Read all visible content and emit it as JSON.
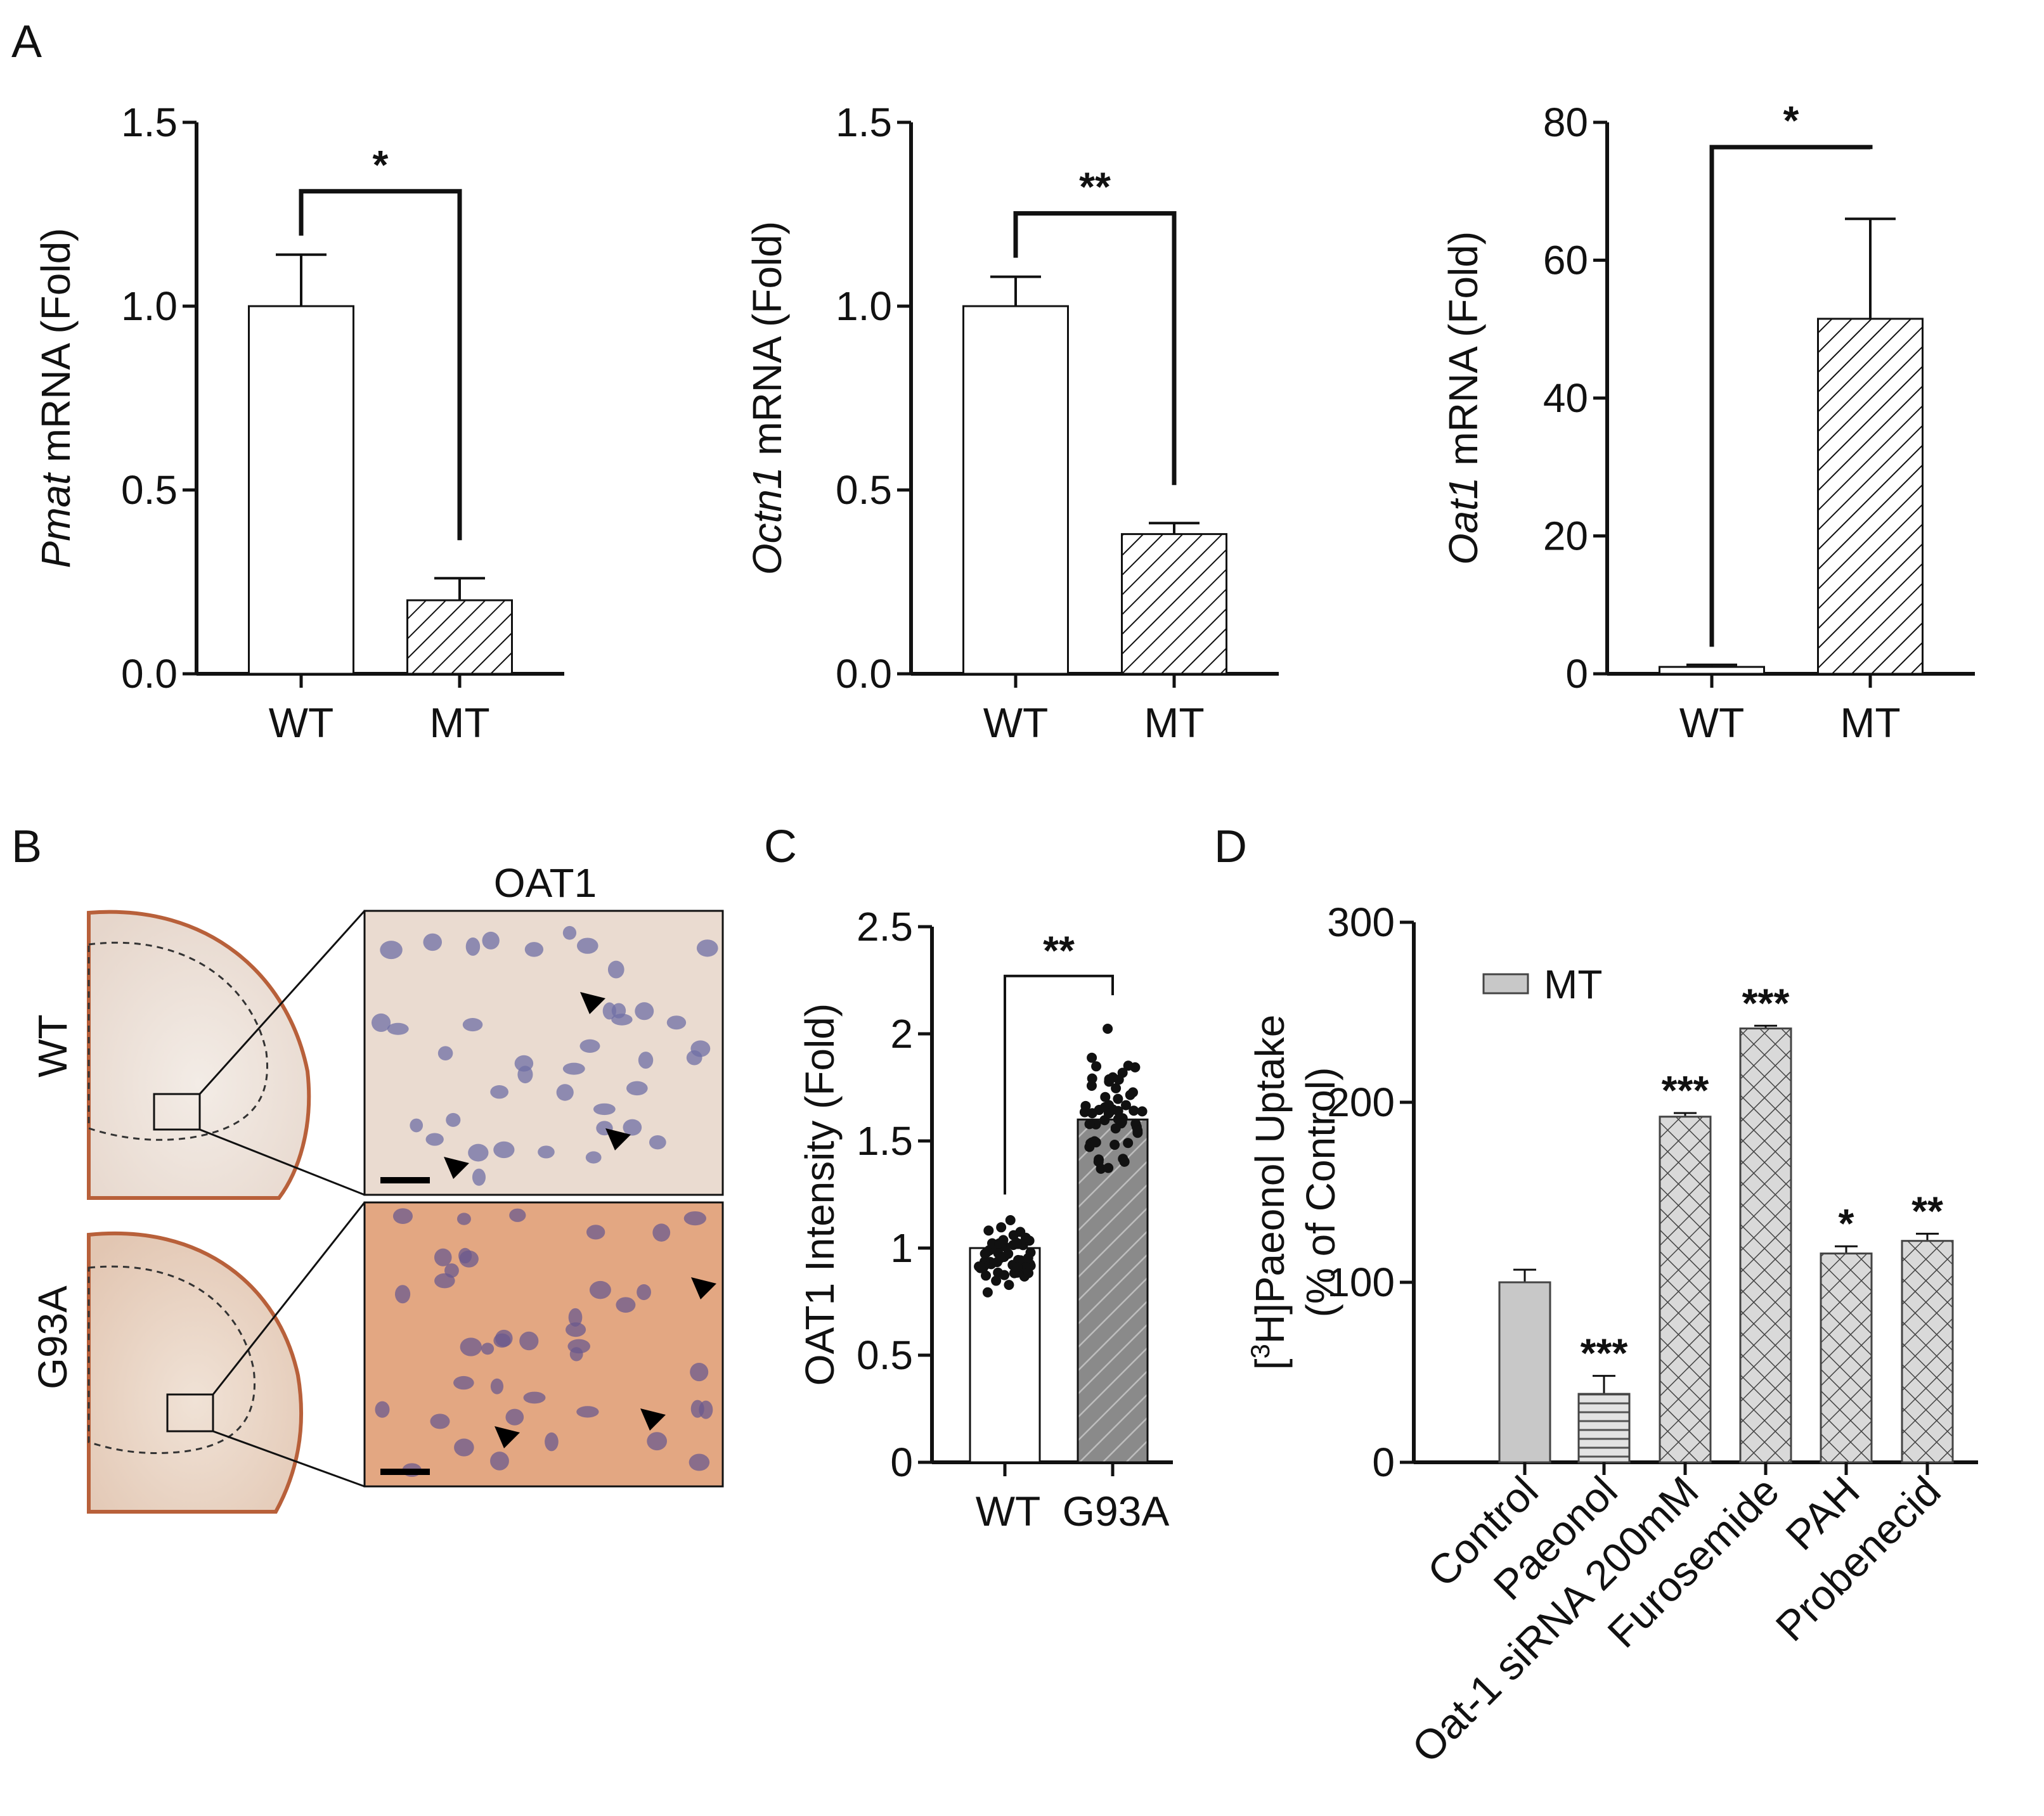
{
  "panel_labels": {
    "A": "A",
    "B": "B",
    "C": "C",
    "D": "D"
  },
  "chart_data": [
    {
      "id": "A1",
      "type": "bar",
      "categories": [
        "WT",
        "MT"
      ],
      "values": [
        1.0,
        0.2
      ],
      "errors": [
        0.14,
        0.06
      ],
      "ylim": [
        0,
        1.5
      ],
      "yticks": [
        "0.0",
        "0.5",
        "1.0",
        "1.5"
      ],
      "ylabel_italic": "Pmat",
      "ylabel_rest": " mRNA (Fold)",
      "significance": "*"
    },
    {
      "id": "A2",
      "type": "bar",
      "categories": [
        "WT",
        "MT"
      ],
      "values": [
        1.0,
        0.38
      ],
      "errors": [
        0.08,
        0.03
      ],
      "ylim": [
        0,
        1.5
      ],
      "yticks": [
        "0.0",
        "0.5",
        "1.0",
        "1.5"
      ],
      "ylabel_italic": "Octn1",
      "ylabel_rest": " mRNA (Fold)",
      "significance": "**"
    },
    {
      "id": "A3",
      "type": "bar",
      "categories": [
        "WT",
        "MT"
      ],
      "values": [
        1,
        51.5
      ],
      "errors": [
        0.3,
        14.5
      ],
      "ylim": [
        0,
        80
      ],
      "yticks": [
        "0",
        "20",
        "40",
        "60",
        "80"
      ],
      "ylabel_italic": "Oat1",
      "ylabel_rest": " mRNA (Fold)",
      "significance": "*"
    },
    {
      "id": "C",
      "type": "bar",
      "categories": [
        "WT",
        "G93A"
      ],
      "values": [
        1.0,
        1.6
      ],
      "ylim": [
        0,
        2.5
      ],
      "yticks": [
        "0",
        "0.5",
        "1",
        "1.5",
        "2",
        "2.5"
      ],
      "ylabel": "OAT1 Intensity (Fold)",
      "significance": "**",
      "points_spread": [
        [
          0.75,
          1.2
        ],
        [
          1.25,
          2.05
        ]
      ]
    },
    {
      "id": "D",
      "type": "bar",
      "categories": [
        "Control",
        "Paeonol",
        "Oat-1 siRNA 200mM",
        "Furosemide",
        "PAH",
        "Probenecid"
      ],
      "values": [
        100,
        38,
        192,
        241,
        116,
        123
      ],
      "errors": [
        7,
        10,
        2,
        1.5,
        4,
        4
      ],
      "significance": [
        "",
        "***",
        "***",
        "***",
        "*",
        "**"
      ],
      "ylim": [
        0,
        300
      ],
      "yticks": [
        "0",
        "100",
        "200",
        "300"
      ],
      "ylabel_line1_pre": "[",
      "ylabel_line1_sup": "3",
      "ylabel_line1_post": "H]Paeonol Uptake",
      "ylabel_line2": "(% of Control)",
      "legend": "MT"
    }
  ],
  "panel_b": {
    "title": "OAT1",
    "row_labels": [
      "WT",
      "G93A"
    ]
  },
  "colors": {
    "bar_gray": "#c8c8c8",
    "hatch_dark": "#8a8a8a",
    "tissue_wt": "#efe3dc",
    "tissue_g93a": "#e9a77e"
  }
}
